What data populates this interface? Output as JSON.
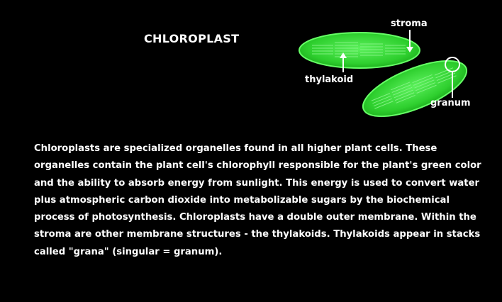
{
  "title": "CHLOROPLAST",
  "diagram": {
    "labels": {
      "stroma": "stroma",
      "thylakoid": "thylakoid",
      "granum": "granum"
    },
    "colors": {
      "organelle_fill": "#33dd33",
      "organelle_edge": "#66ff66",
      "thylakoid_lines": "#8cf58c",
      "pointer": "#ffffff"
    }
  },
  "description": "Chloroplasts are specialized organelles found in all higher plant cells. These organelles contain the plant cell's chlorophyll responsible for the plant's green color and the ability to absorb energy from sunlight. This energy is used to convert water plus atmospheric carbon dioxide into metabolizable sugars by the biochemical process of photosynthesis. Chloroplasts have a double outer membrane. Within the stroma are other membrane structures - the thylakoids. Thylakoids appear in stacks called \"grana\" (singular = granum)."
}
